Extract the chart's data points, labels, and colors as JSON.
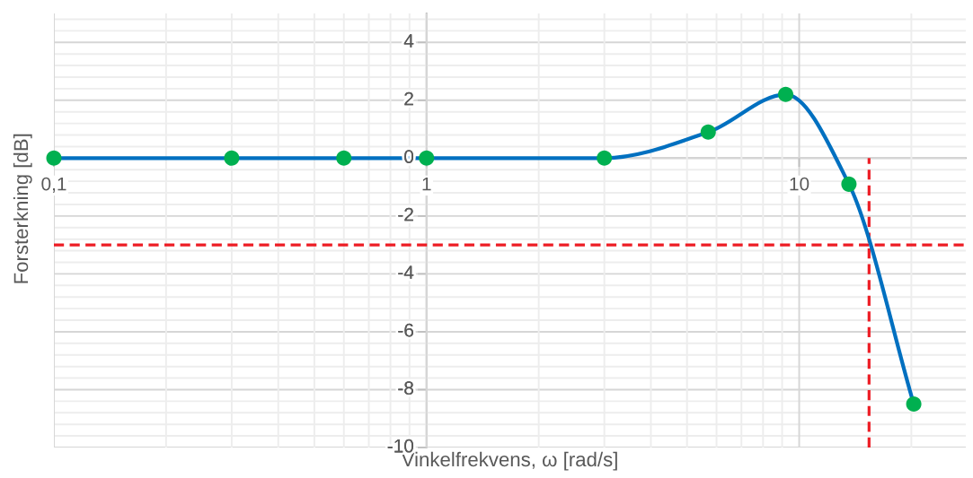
{
  "chart_data": {
    "type": "line",
    "xlabel": "Vinkelfrekvens, ω [rad/s]",
    "ylabel": "Forsterkning [dB]",
    "x": [
      0.1,
      0.3,
      0.6,
      1,
      3,
      5.7,
      9.2,
      13.6,
      20.3
    ],
    "series": [
      {
        "color": "#0070c0",
        "values": [
          0,
          0,
          0,
          0,
          0,
          0.9,
          2.2,
          -0.9,
          -8.5
        ]
      },
      {
        "type": "scatter",
        "marker": "circle",
        "color": "#00b050",
        "values": [
          0,
          0,
          0,
          0,
          0,
          0.9,
          2.2,
          -0.9,
          -8.5
        ]
      }
    ],
    "log": "x",
    "xlim": [
      0.1,
      28
    ],
    "ylim": [
      -10,
      5
    ],
    "xticks": [
      {
        "value": 0.1,
        "label": "0,1"
      },
      1,
      10
    ],
    "yticks": [
      -10,
      -8,
      -6,
      -4,
      -2,
      0,
      2,
      4
    ],
    "grid": true,
    "line_style": "solid",
    "ref_lines": [
      {
        "axis": "y",
        "value": -3,
        "color": "#ed1c24",
        "line_style": "dashed"
      },
      {
        "axis": "x",
        "value": 15.4,
        "color": "#ed1c24",
        "line_style": "dashed"
      }
    ]
  }
}
